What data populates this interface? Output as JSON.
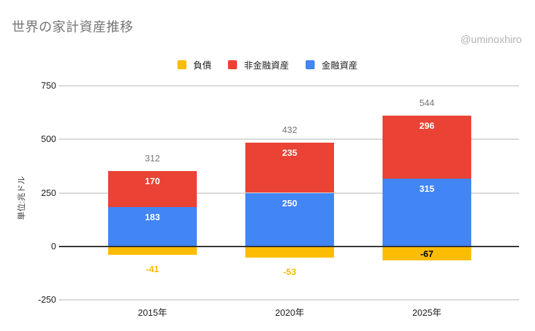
{
  "chart": {
    "title": "世界の家計資産推移",
    "watermark": "@uminoxhiro"
  },
  "colors": {
    "title": "#757575",
    "watermark": "#b3b3b3",
    "gridline": "#d9d9d9",
    "zero_line": "#333333",
    "total_label": "#757575",
    "segment_label": "#ffffff",
    "axis_label": "#1a1a1a"
  },
  "chart_data": {
    "type": "bar",
    "stacked": true,
    "title": "世界の家計資産推移",
    "ylabel": "単位:兆ドル",
    "categories": [
      "2015年",
      "2020年",
      "2025年"
    ],
    "series": [
      {
        "name": "負債",
        "color": "#FBBC04",
        "values": [
          -41,
          -53,
          -67
        ]
      },
      {
        "name": "非金融資産",
        "color": "#EA4335",
        "values": [
          170,
          235,
          296
        ]
      },
      {
        "name": "金融資産",
        "color": "#4285F4",
        "values": [
          183,
          250,
          315
        ]
      }
    ],
    "totals": [
      312,
      432,
      544
    ],
    "yticks": [
      750,
      500,
      250,
      0,
      -250
    ],
    "ylim": [
      -250,
      750
    ],
    "grid": true,
    "legend_position": "top"
  }
}
